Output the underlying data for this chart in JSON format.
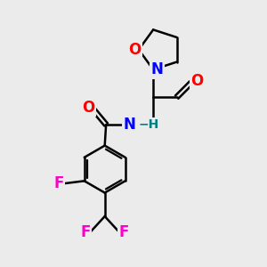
{
  "bg_color": "#ebebeb",
  "bond_color": "#000000",
  "bond_width": 1.8,
  "atom_colors": {
    "O": "#ff0000",
    "N": "#0000ff",
    "F": "#ff00cc",
    "H": "#008080"
  },
  "font_size": 12,
  "font_size_h": 10
}
